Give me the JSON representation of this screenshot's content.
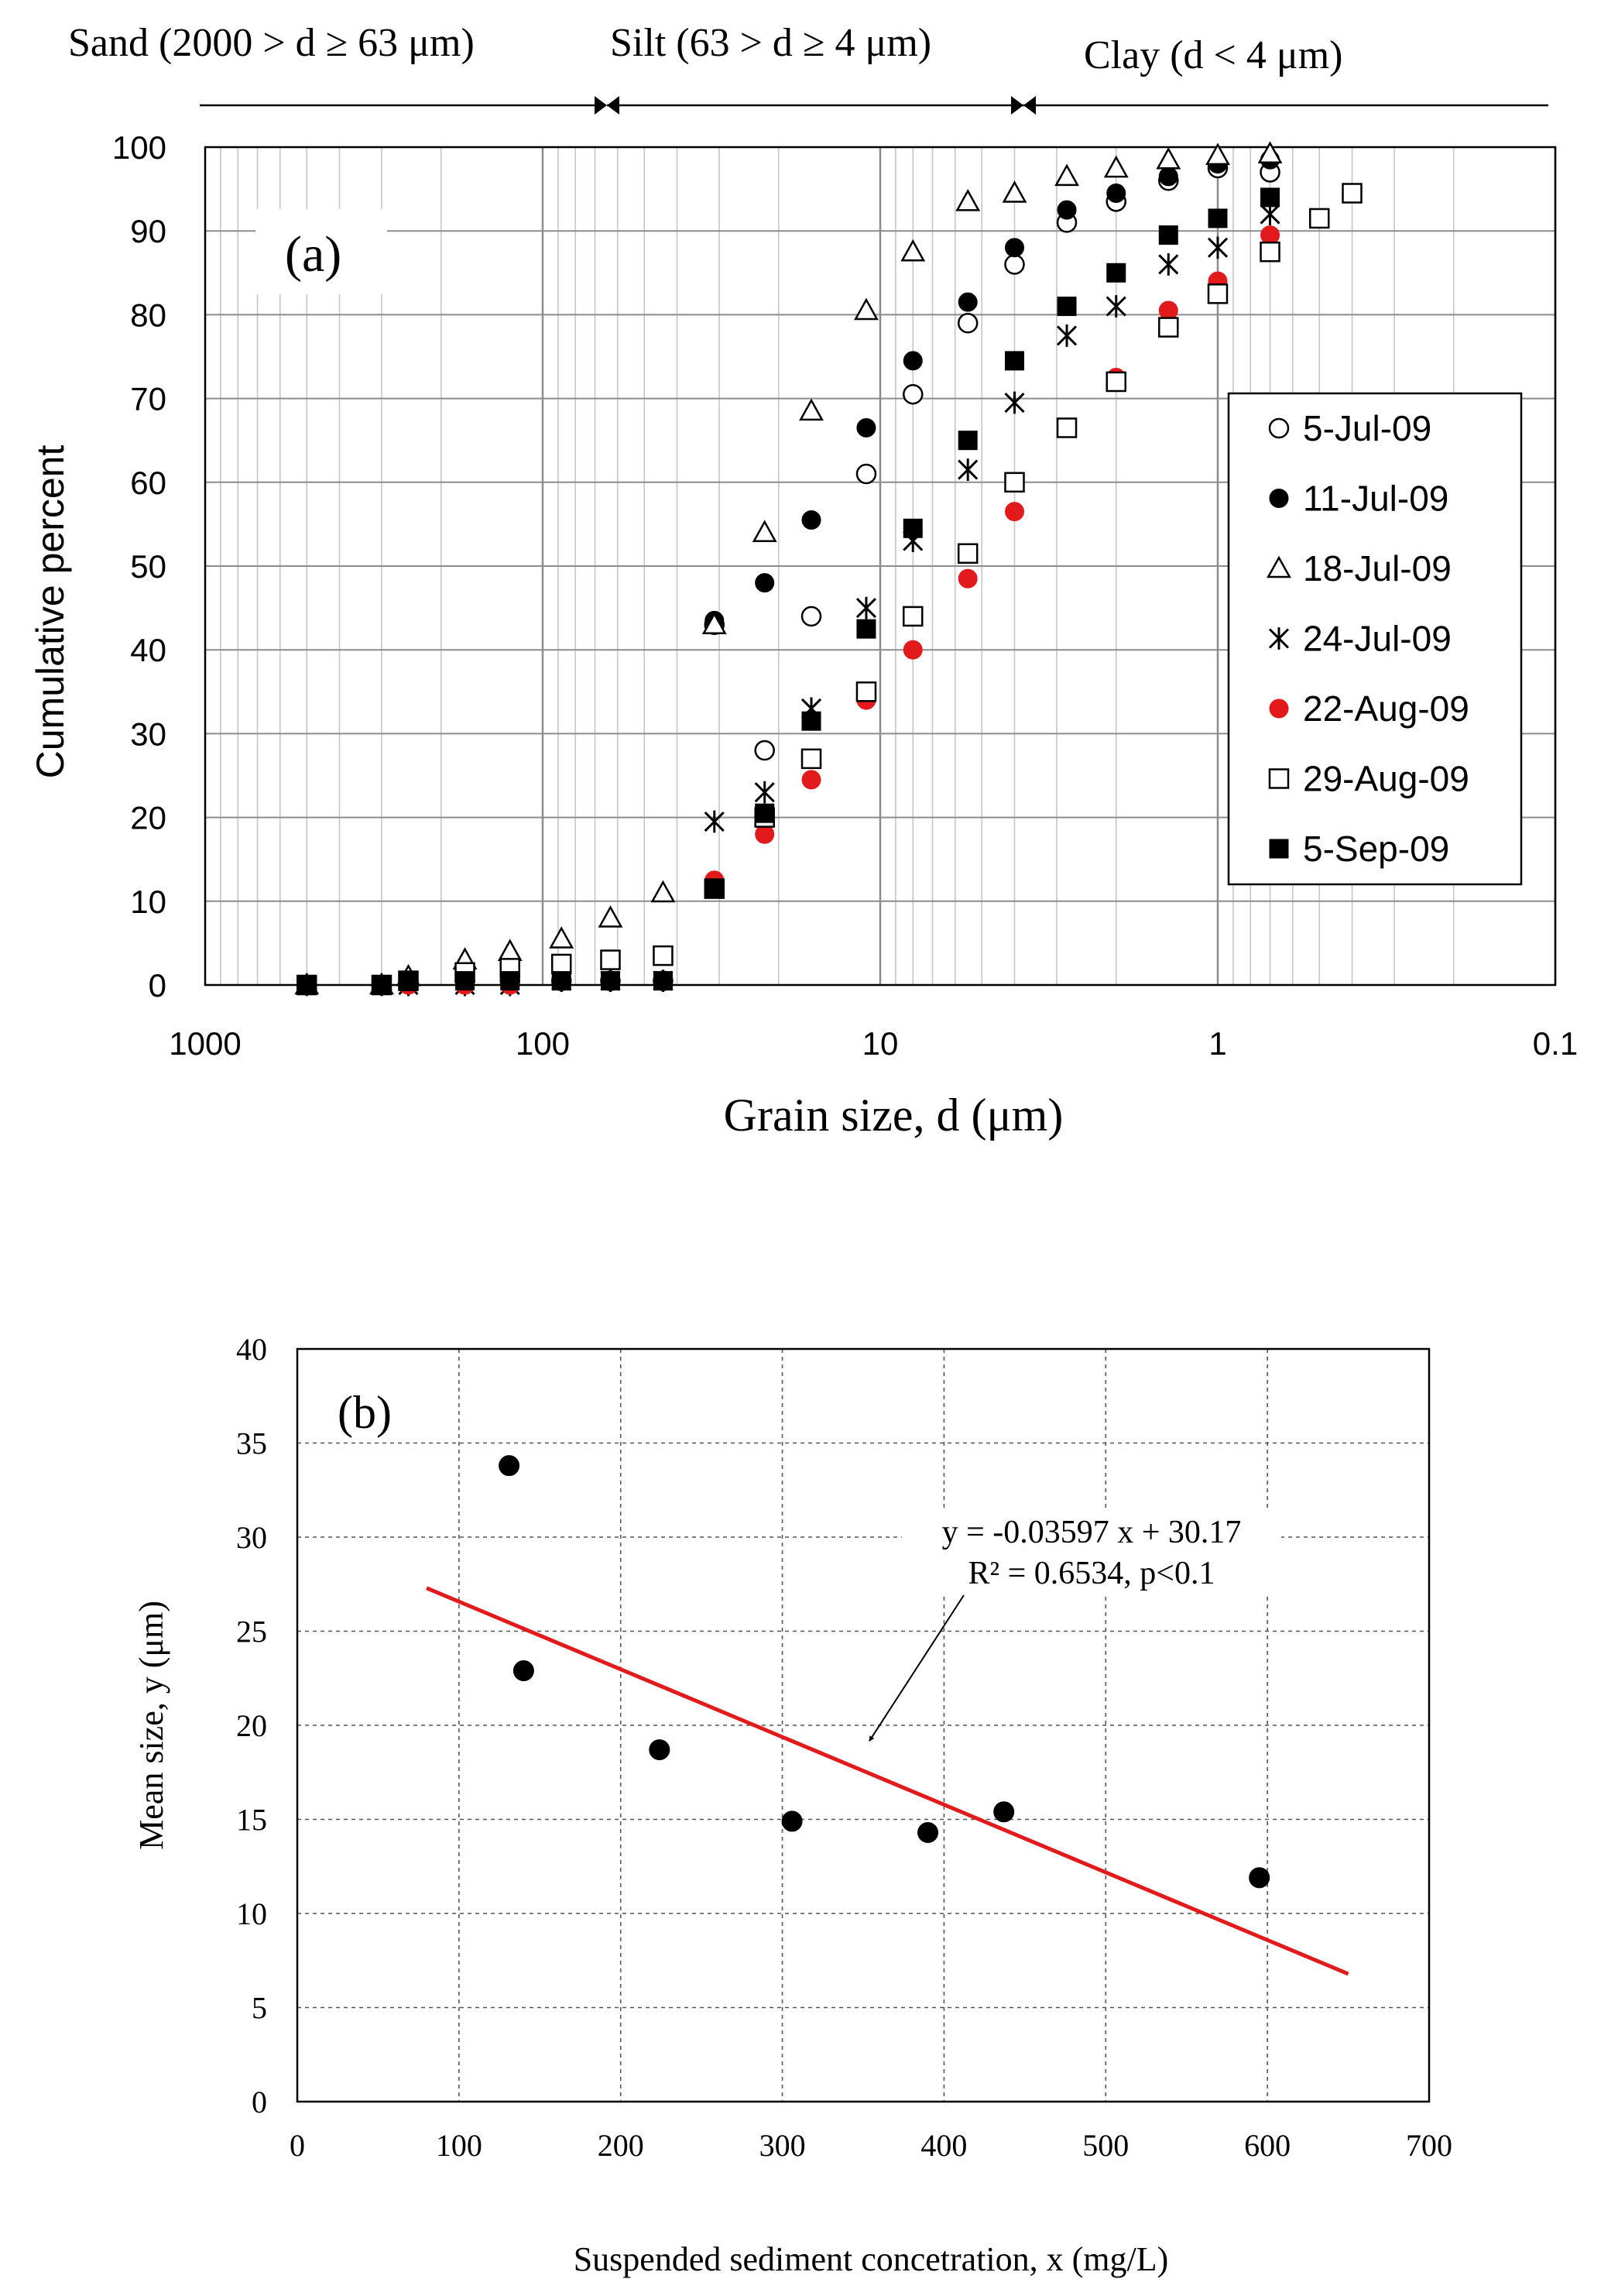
{
  "figure": {
    "size_classes": [
      {
        "label": "Sand (2000 > d ≥ 63 μm)"
      },
      {
        "label": "Silt (63 > d ≥ 4 μm)"
      },
      {
        "label": "Clay (d < 4 μm)"
      }
    ]
  },
  "chart_data": [
    {
      "type": "scatter",
      "panel_label": "(a)",
      "xlabel": "Grain size, d (μm)",
      "ylabel": "Cumulative percent",
      "xscale": "log",
      "xaxis_reversed": true,
      "xlim": [
        1000,
        0.1
      ],
      "ylim": [
        0,
        100
      ],
      "xticks": [
        1000,
        100,
        10,
        1,
        0.1
      ],
      "xtick_labels": [
        "1000",
        "100",
        "10",
        "1",
        "0.1"
      ],
      "yticks": [
        0,
        10,
        20,
        30,
        40,
        50,
        60,
        70,
        80,
        90,
        100
      ],
      "ytick_labels": [
        "0",
        "10",
        "20",
        "30",
        "40",
        "50",
        "60",
        "70",
        "80",
        "90",
        "100"
      ],
      "grid": true,
      "legend_position": "right",
      "series": [
        {
          "name": "5-Jul-09",
          "marker": "circle-open",
          "color": "#000000",
          "x": [
            500,
            300,
            250,
            170,
            125,
            88,
            63,
            44,
            31,
            22,
            16,
            11,
            8,
            5.5,
            4,
            2.8,
            2,
            1.4,
            1,
            0.7
          ],
          "y": [
            0,
            0,
            0.5,
            0.5,
            0.5,
            0.5,
            0.5,
            0.5,
            43,
            28,
            44,
            61,
            70.5,
            79,
            86,
            91,
            93.5,
            96,
            97.5,
            97
          ]
        },
        {
          "name": "11-Jul-09",
          "marker": "circle-filled",
          "color": "#000000",
          "x": [
            500,
            300,
            250,
            170,
            125,
            88,
            63,
            44,
            31,
            22,
            16,
            11,
            8,
            5.5,
            4,
            2.8,
            2,
            1.4,
            1,
            0.7
          ],
          "y": [
            0,
            0,
            0.5,
            0.5,
            0.5,
            0.5,
            0.5,
            0.5,
            43.5,
            48,
            55.5,
            66.5,
            74.5,
            81.5,
            88,
            92.5,
            94.5,
            96.5,
            98,
            98.5
          ]
        },
        {
          "name": "18-Jul-09",
          "marker": "triangle-open",
          "color": "#000000",
          "x": [
            500,
            300,
            250,
            170,
            125,
            88,
            63,
            44,
            31,
            22,
            16,
            11,
            8,
            5.5,
            4,
            2.8,
            2,
            1.4,
            1,
            0.7
          ],
          "y": [
            0,
            0,
            1,
            3,
            4,
            5.5,
            8,
            11,
            43,
            54,
            68.5,
            80.5,
            87.5,
            93.5,
            94.5,
            96.5,
            97.5,
            98.5,
            99,
            99.2
          ]
        },
        {
          "name": "24-Jul-09",
          "marker": "asterisk",
          "color": "#000000",
          "x": [
            500,
            300,
            250,
            170,
            125,
            88,
            63,
            44,
            31,
            22,
            16,
            11,
            8,
            5.5,
            4,
            2.8,
            2,
            1.4,
            1,
            0.7
          ],
          "y": [
            0,
            0,
            0,
            0,
            0,
            0.5,
            0.5,
            0.5,
            19.5,
            23,
            33,
            45,
            53,
            61.5,
            69.5,
            77.5,
            81,
            86,
            88,
            92
          ]
        },
        {
          "name": "22-Aug-09",
          "marker": "circle-filled",
          "color": "#e31a1c",
          "x": [
            500,
            300,
            250,
            170,
            125,
            88,
            63,
            44,
            31,
            22,
            16,
            11,
            8,
            5.5,
            4,
            2.8,
            2,
            1.4,
            1,
            0.7
          ],
          "y": [
            0,
            0,
            0,
            0,
            0,
            0.5,
            0.5,
            0.5,
            12.5,
            18,
            24.5,
            34,
            40,
            48.5,
            56.5,
            66.5,
            72.5,
            80.5,
            84,
            89.5
          ]
        },
        {
          "name": "29-Aug-09",
          "marker": "square-open",
          "color": "#000000",
          "x": [
            500,
            300,
            250,
            170,
            125,
            88,
            63,
            44,
            31,
            22,
            16,
            11,
            8,
            5.5,
            4,
            2.8,
            2,
            1.4,
            1,
            0.7,
            0.5,
            0.4
          ],
          "y": [
            0,
            0,
            0.5,
            1.5,
            2,
            2.5,
            3,
            3.5,
            11.5,
            20,
            27,
            35,
            44,
            51.5,
            60,
            66.5,
            72,
            78.5,
            82.5,
            87.5,
            91.5,
            94.5
          ]
        },
        {
          "name": "5-Sep-09",
          "marker": "square-filled",
          "color": "#000000",
          "x": [
            500,
            300,
            250,
            170,
            125,
            88,
            63,
            44,
            31,
            22,
            16,
            11,
            8,
            5.5,
            4,
            2.8,
            2,
            1.4,
            1,
            0.7
          ],
          "y": [
            0,
            0,
            0.5,
            0.5,
            0.5,
            0.5,
            0.5,
            0.5,
            11.5,
            20.5,
            31.5,
            42.5,
            54.5,
            65,
            74.5,
            81,
            85,
            89.5,
            91.5,
            94
          ]
        }
      ]
    },
    {
      "type": "scatter",
      "panel_label": "(b)",
      "xlabel": "Suspended sediment concetration, x (mg/L)",
      "ylabel": "Mean size, y (μm)",
      "xlim": [
        0,
        700
      ],
      "ylim": [
        0,
        40
      ],
      "xticks": [
        0,
        100,
        200,
        300,
        400,
        500,
        600,
        700
      ],
      "xtick_labels": [
        "0",
        "100",
        "200",
        "300",
        "400",
        "500",
        "600",
        "700"
      ],
      "yticks": [
        0,
        5,
        10,
        15,
        20,
        25,
        30,
        35,
        40
      ],
      "ytick_labels": [
        "0",
        "5",
        "10",
        "15",
        "20",
        "25",
        "30",
        "35",
        "40"
      ],
      "grid": true,
      "series": [
        {
          "name": "Mean size",
          "marker": "circle-filled",
          "color": "#000000",
          "x": [
            131,
            140,
            224,
            306,
            390,
            437,
            595
          ],
          "y": [
            33.8,
            22.9,
            18.7,
            14.9,
            14.3,
            15.4,
            11.9
          ]
        }
      ],
      "trendline": {
        "color": "#e31a1c",
        "slope": -0.03597,
        "intercept": 30.17,
        "x_range": [
          80,
          650
        ],
        "equation": "y = -0.03597 x + 30.17",
        "r2_text": "R² = 0.6534, p<0.1"
      },
      "annotation": {
        "points_to": [
          350,
          19
        ]
      }
    }
  ]
}
